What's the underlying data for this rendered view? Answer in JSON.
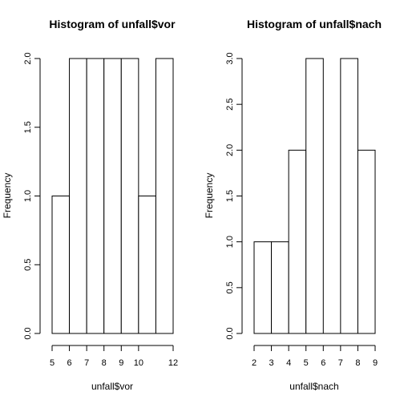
{
  "chart_data": [
    {
      "type": "bar",
      "title": "Histogram of unfall$vor",
      "xlabel": "unfall$vor",
      "ylabel": "Frequency",
      "bins": [
        [
          5,
          6
        ],
        [
          6,
          7
        ],
        [
          7,
          8
        ],
        [
          8,
          9
        ],
        [
          9,
          10
        ],
        [
          10,
          11
        ],
        [
          11,
          12
        ]
      ],
      "values": [
        1,
        2,
        2,
        2,
        2,
        1,
        2
      ],
      "xlim": [
        5,
        12
      ],
      "ylim": [
        0,
        2
      ],
      "xticks": [
        5,
        6,
        7,
        8,
        9,
        10,
        12
      ],
      "yticks": [
        "0.0",
        "0.5",
        "1.0",
        "1.5",
        "2.0"
      ],
      "grid": false
    },
    {
      "type": "bar",
      "title": "Histogram of unfall$nach",
      "xlabel": "unfall$nach",
      "ylabel": "Frequency",
      "bins": [
        [
          2,
          3
        ],
        [
          3,
          4
        ],
        [
          4,
          5
        ],
        [
          5,
          6
        ],
        [
          6,
          7
        ],
        [
          7,
          8
        ],
        [
          8,
          9
        ]
      ],
      "values": [
        1,
        1,
        2,
        3,
        0,
        3,
        2
      ],
      "xlim": [
        2,
        9
      ],
      "ylim": [
        0,
        3
      ],
      "xticks": [
        2,
        3,
        4,
        5,
        6,
        7,
        8,
        9
      ],
      "yticks": [
        "0.0",
        "0.5",
        "1.0",
        "1.5",
        "2.0",
        "2.5",
        "3.0"
      ],
      "grid": false
    }
  ]
}
